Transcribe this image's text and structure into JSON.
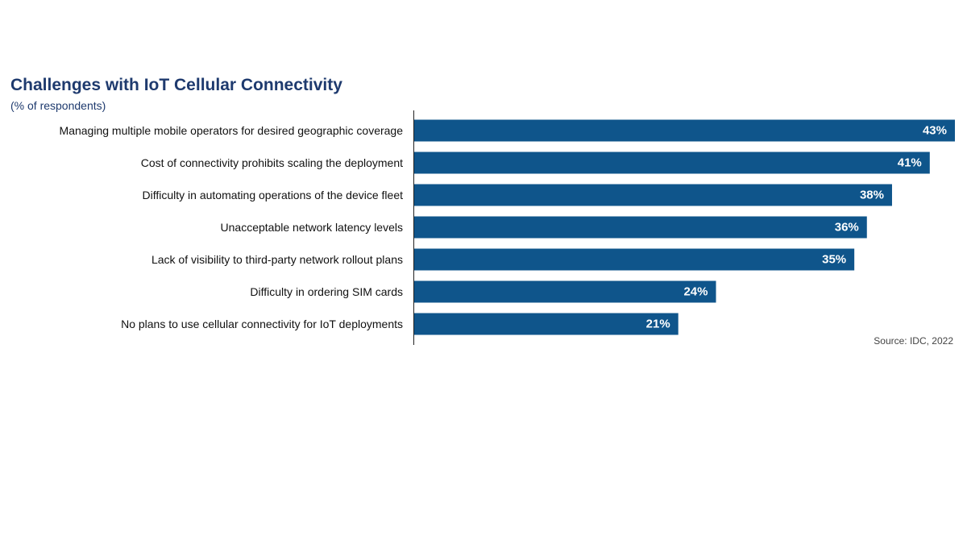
{
  "chart_data": {
    "type": "bar",
    "orientation": "horizontal",
    "title": "Challenges with IoT Cellular Connectivity",
    "subtitle": "(% of respondents)",
    "categories": [
      "Managing multiple mobile operators for desired geographic coverage",
      "Cost of connectivity prohibits scaling the deployment",
      "Difficulty in automating operations of the device fleet",
      "Unacceptable network latency levels",
      "Lack of visibility to third-party network rollout plans",
      "Difficulty in ordering SIM cards",
      "No plans to use cellular connectivity for IoT deployments"
    ],
    "values": [
      43,
      41,
      38,
      36,
      35,
      24,
      21
    ],
    "value_labels": [
      "43%",
      "41%",
      "38%",
      "36%",
      "35%",
      "24%",
      "21%"
    ],
    "value_suffix": "%",
    "xlim": [
      0,
      43
    ],
    "grid": false,
    "legend": "none",
    "bar_color": "#0f558b",
    "source": "Source: IDC, 2022"
  }
}
